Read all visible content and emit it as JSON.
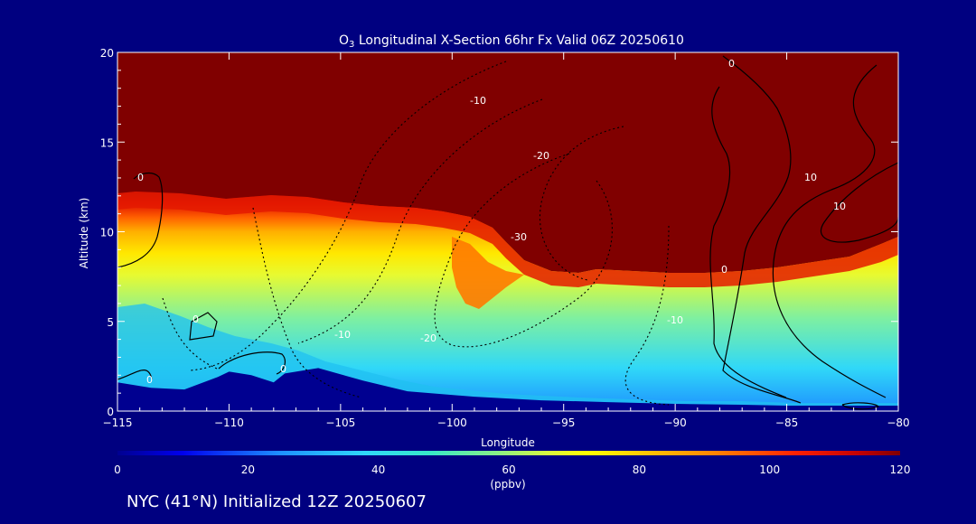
{
  "chart_data": {
    "type": "heatmap",
    "title_species": "O",
    "title_sub": "3",
    "title_rest": " Longitudinal X-Section 66hr  Fx Valid 06Z 20250610",
    "xlabel": "Longitude",
    "ylabel": "Altitude (km)",
    "xlim": [
      -115,
      -80
    ],
    "ylim": [
      0,
      20
    ],
    "x_ticks": [
      -115,
      -110,
      -105,
      -100,
      -95,
      -90,
      -85,
      -80
    ],
    "x_tick_labels": [
      "−115",
      "−110",
      "−105",
      "−100",
      "−95",
      "−90",
      "−85",
      "−80"
    ],
    "y_ticks": [
      0,
      5,
      10,
      15,
      20
    ],
    "y_tick_labels": [
      "0",
      "5",
      "10",
      "15",
      "20"
    ],
    "colorbar": {
      "range": [
        0,
        120
      ],
      "ticks": [
        0,
        20,
        40,
        60,
        80,
        100,
        120
      ],
      "tick_labels": [
        "0",
        "20",
        "40",
        "60",
        "80",
        "100",
        "120"
      ],
      "unit": "(ppbv)",
      "stops": [
        {
          "value": 0,
          "color": "#000090"
        },
        {
          "value": 10,
          "color": "#0000ee"
        },
        {
          "value": 25,
          "color": "#1e90ff"
        },
        {
          "value": 38,
          "color": "#30d8f8"
        },
        {
          "value": 48,
          "color": "#38e8c8"
        },
        {
          "value": 58,
          "color": "#88f088"
        },
        {
          "value": 66,
          "color": "#d8f840"
        },
        {
          "value": 72,
          "color": "#ffff00"
        },
        {
          "value": 82,
          "color": "#ffc000"
        },
        {
          "value": 92,
          "color": "#ff8000"
        },
        {
          "value": 104,
          "color": "#ff2000"
        },
        {
          "value": 114,
          "color": "#c00000"
        },
        {
          "value": 120,
          "color": "#800000"
        }
      ]
    },
    "series": [
      {
        "longitude": [
          -115,
          -113,
          -111,
          -109,
          -107,
          -105,
          -103,
          -101,
          -99,
          -97,
          -95,
          -93,
          -91,
          -89,
          -87,
          -85,
          -83,
          -81,
          -80
        ],
        "ozone_high_boundary_km": [
          8,
          8,
          8,
          8,
          8,
          8,
          8,
          8,
          5,
          5,
          6,
          6.5,
          7,
          7.5,
          8,
          7.8,
          7,
          6.5,
          6.5
        ]
      },
      {
        "longitude": [
          -115,
          -112,
          -109,
          -106,
          -103,
          -100,
          -97,
          -94,
          -91,
          -88,
          -85,
          -82,
          -80
        ],
        "tropopause_km": [
          11.8,
          12.0,
          11.6,
          11.8,
          11.5,
          11.2,
          9.6,
          8.9,
          8.1,
          7.8,
          7.9,
          8.6,
          9.4
        ]
      },
      {
        "longitude": [
          -115,
          -113.5,
          -112,
          -110.5,
          -110,
          -109,
          -108,
          -107.5,
          -106,
          -104,
          -102,
          -99,
          -96,
          -93,
          -90,
          -87,
          -85,
          -80
        ],
        "terrain_km": [
          1.6,
          1.3,
          1.2,
          1.9,
          2.2,
          2.0,
          1.6,
          2.1,
          2.4,
          1.7,
          1.1,
          0.8,
          0.6,
          0.5,
          0.4,
          0.35,
          0.3,
          0.3
        ]
      }
    ],
    "contour_labels": [
      "0",
      "0",
      "0",
      "-10",
      "-20",
      "-30",
      "0",
      "-10",
      "-20",
      "-10",
      "0",
      "0",
      "10",
      "10"
    ]
  },
  "footer": {
    "caption": "NYC (41°N) Initialized 12Z 20250607"
  }
}
